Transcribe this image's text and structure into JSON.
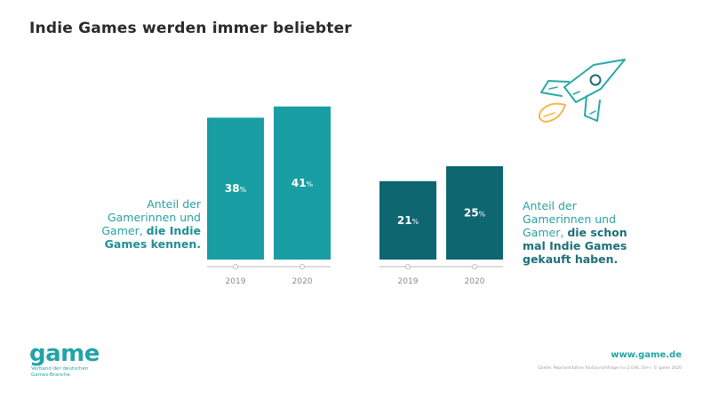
{
  "title": "Indie Games werden immer beliebter",
  "chart_data": [
    {
      "type": "bar",
      "categories": [
        "2019",
        "2020"
      ],
      "values": [
        38,
        41
      ],
      "value_labels": [
        "38",
        "41"
      ],
      "unit": "%",
      "color": "#189ea3",
      "description_plain": "Anteil der Gamerinnen und Gamer, ",
      "description_bold": "die Indie Games kennen.",
      "ylim": [
        0,
        45
      ],
      "grid": false
    },
    {
      "type": "bar",
      "categories": [
        "2019",
        "2020"
      ],
      "values": [
        21,
        25
      ],
      "value_labels": [
        "21",
        "25"
      ],
      "unit": "%",
      "color": "#0d6670",
      "description_plain": "Anteil der Gamerinnen und Gamer, ",
      "description_bold": "die schon mal Indie Games gekauft haben.",
      "ylim": [
        0,
        45
      ],
      "grid": false
    }
  ],
  "decoration": {
    "icon": "rocket-icon",
    "line_color": "#2aa7a8",
    "flame_color": "#f2b84b"
  },
  "footer": {
    "logo": "game",
    "logo_subtitle_1": "Verband der deutschen",
    "logo_subtitle_2": "Games-Branche",
    "url": "www.game.de",
    "source": "Quelle: Repräsentative YouGov-Umfrage (n=2.036, 16+), © game 2020"
  }
}
